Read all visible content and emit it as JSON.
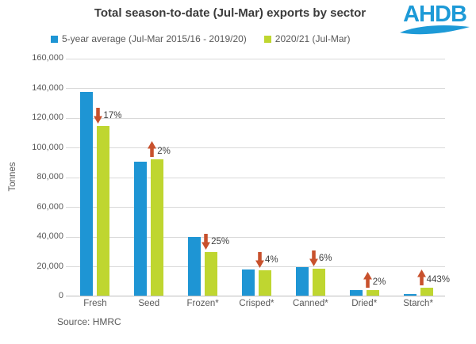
{
  "title": "Total season-to-date (Jul-Mar) exports by sector",
  "logo": {
    "text": "AHDB",
    "color": "#1d9ad7"
  },
  "legend": [
    {
      "label": "5-year average (Jul-Mar 2015/16 - 2019/20)",
      "color": "#1e95d4"
    },
    {
      "label": "2020/21 (Jul-Mar)",
      "color": "#bfd630"
    }
  ],
  "source": "Source: HMRC",
  "colors": {
    "series_blue": "#1e95d4",
    "series_green": "#bfd630",
    "arrow_orange": "#c8512d",
    "gridline": "#d9d9d9"
  },
  "chart_data": {
    "type": "bar",
    "title": "Total season-to-date (Jul-Mar) exports by sector",
    "xlabel": "",
    "ylabel": "Tonnes",
    "ylim": [
      0,
      160000
    ],
    "ytick_interval": 20000,
    "ytick_labels": [
      "0",
      "20,000",
      "40,000",
      "60,000",
      "80,000",
      "100,000",
      "120,000",
      "140,000",
      "160,000"
    ],
    "grid": true,
    "legend_position": "top",
    "categories": [
      "Fresh",
      "Seed",
      "Frozen*",
      "Crisped*",
      "Canned*",
      "Dried*",
      "Starch*"
    ],
    "series": [
      {
        "name": "5-year average (Jul-Mar 2015/16 - 2019/20)",
        "color": "#1e95d4",
        "values": [
          137000,
          90000,
          39500,
          17600,
          19400,
          3700,
          1000
        ]
      },
      {
        "name": "2020/21 (Jul-Mar)",
        "color": "#bfd630",
        "values": [
          114000,
          92000,
          29600,
          16900,
          18200,
          3800,
          5400
        ]
      }
    ],
    "annotations": [
      {
        "category": "Fresh",
        "direction": "down",
        "label": "17%"
      },
      {
        "category": "Seed",
        "direction": "up",
        "label": "2%"
      },
      {
        "category": "Frozen*",
        "direction": "down",
        "label": "25%"
      },
      {
        "category": "Crisped*",
        "direction": "down",
        "label": "4%"
      },
      {
        "category": "Canned*",
        "direction": "down",
        "label": "6%"
      },
      {
        "category": "Dried*",
        "direction": "up",
        "label": "2%"
      },
      {
        "category": "Starch*",
        "direction": "up",
        "label": "443%"
      }
    ]
  }
}
